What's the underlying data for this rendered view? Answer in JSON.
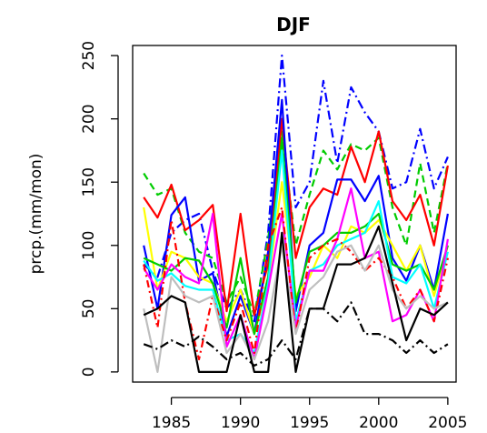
{
  "chart_data": {
    "type": "line",
    "title": "DJF",
    "xlabel": "",
    "ylabel": "prcp.(mm/mon)",
    "xlim": [
      1982.2,
      2005.6
    ],
    "ylim": [
      -8,
      258
    ],
    "xticks": [
      1985,
      1990,
      1995,
      2000,
      2005
    ],
    "yticks": [
      0,
      50,
      100,
      150,
      200,
      250
    ],
    "x": [
      1983,
      1984,
      1985,
      1986,
      1987,
      1988,
      1989,
      1990,
      1991,
      1992,
      1993,
      1994,
      1995,
      1996,
      1997,
      1998,
      1999,
      2000,
      2001,
      2002,
      2003,
      2004,
      2005
    ],
    "series": [
      {
        "color": "#0000ff",
        "dash": "10,4,2,4",
        "values": [
          85,
          75,
          110,
          120,
          125,
          80,
          50,
          65,
          40,
          110,
          250,
          130,
          150,
          230,
          165,
          225,
          205,
          190,
          145,
          150,
          192,
          145,
          170
        ]
      },
      {
        "color": "#00cc00",
        "dash": "8,5",
        "values": [
          157,
          140,
          145,
          110,
          95,
          90,
          55,
          75,
          45,
          105,
          190,
          100,
          140,
          175,
          160,
          180,
          175,
          185,
          130,
          100,
          165,
          110,
          165
        ]
      },
      {
        "color": "#ff0000",
        "dash": "",
        "values": [
          138,
          122,
          148,
          112,
          120,
          132,
          48,
          125,
          45,
          85,
          200,
          90,
          130,
          145,
          140,
          178,
          150,
          190,
          135,
          120,
          140,
          100,
          163
        ]
      },
      {
        "color": "#0000ff",
        "dash": "",
        "values": [
          100,
          50,
          124,
          138,
          72,
          78,
          28,
          60,
          30,
          95,
          215,
          48,
          100,
          110,
          152,
          152,
          135,
          155,
          90,
          72,
          100,
          65,
          125
        ]
      },
      {
        "color": "#ffff00",
        "dash": "",
        "values": [
          130,
          65,
          95,
          90,
          75,
          70,
          40,
          65,
          30,
          70,
          150,
          60,
          75,
          100,
          90,
          115,
          110,
          120,
          100,
          80,
          100,
          60,
          100
        ]
      },
      {
        "color": "#00cc00",
        "dash": "",
        "values": [
          90,
          85,
          80,
          90,
          88,
          70,
          35,
          90,
          30,
          75,
          185,
          55,
          95,
          100,
          110,
          110,
          115,
          125,
          85,
          80,
          85,
          65,
          100
        ]
      },
      {
        "color": "#00ffff",
        "dash": "",
        "values": [
          88,
          72,
          78,
          68,
          65,
          65,
          25,
          30,
          15,
          70,
          175,
          40,
          80,
          85,
          100,
          105,
          110,
          135,
          75,
          70,
          85,
          50,
          95
        ]
      },
      {
        "color": "#ff00ff",
        "dash": "",
        "values": [
          82,
          65,
          85,
          75,
          70,
          125,
          20,
          45,
          10,
          65,
          125,
          35,
          80,
          80,
          105,
          145,
          90,
          95,
          40,
          45,
          65,
          40,
          105
        ]
      },
      {
        "color": "#ff0000",
        "dash": "8,4,2,4",
        "values": [
          85,
          35,
          120,
          55,
          10,
          60,
          25,
          55,
          15,
          100,
          130,
          30,
          90,
          100,
          105,
          95,
          80,
          90,
          75,
          50,
          65,
          40,
          90
        ]
      },
      {
        "color": "#bebebe",
        "dash": "",
        "values": [
          50,
          0,
          75,
          60,
          55,
          60,
          15,
          30,
          10,
          40,
          100,
          30,
          65,
          75,
          95,
          100,
          80,
          100,
          65,
          50,
          60,
          50,
          55
        ]
      },
      {
        "color": "#000000",
        "dash": "",
        "values": [
          45,
          50,
          60,
          55,
          0,
          0,
          0,
          45,
          0,
          0,
          110,
          0,
          50,
          50,
          85,
          85,
          90,
          115,
          70,
          25,
          50,
          45,
          55
        ]
      },
      {
        "color": "#000000",
        "dash": "10,4,2,4",
        "values": [
          22,
          18,
          25,
          20,
          28,
          20,
          10,
          15,
          5,
          10,
          25,
          10,
          50,
          50,
          40,
          55,
          30,
          30,
          25,
          15,
          25,
          15,
          22
        ]
      }
    ]
  }
}
